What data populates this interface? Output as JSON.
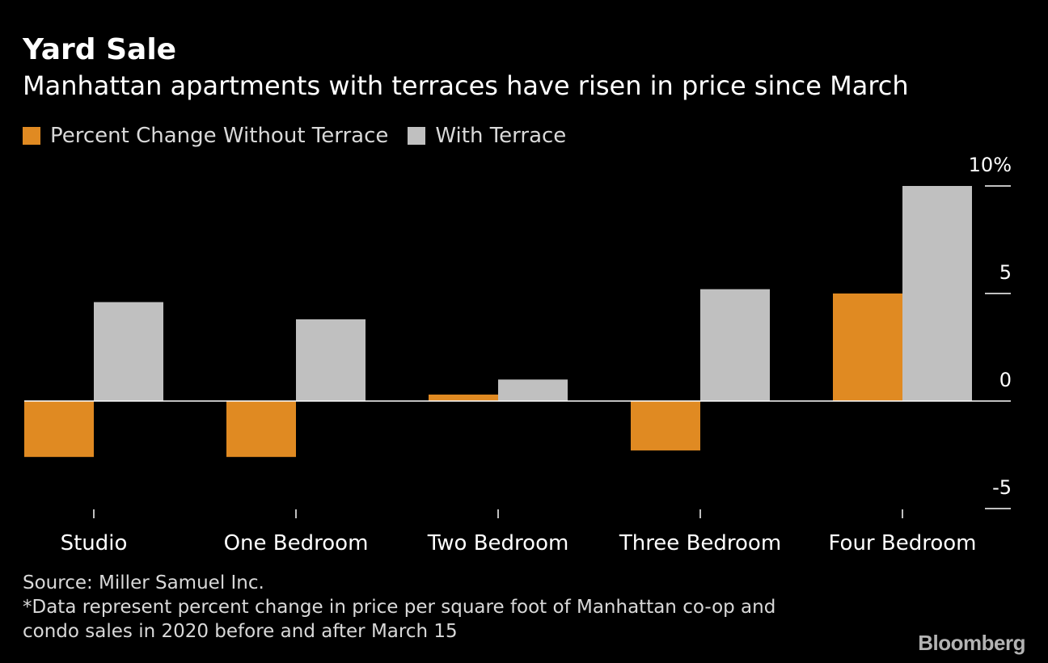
{
  "colors": {
    "background": "#000000",
    "without_terrace": "#e08a22",
    "with_terrace": "#c0c0c0",
    "axis": "#ffffff",
    "text_muted": "#d9d9d9"
  },
  "chart_data": {
    "type": "bar",
    "title": "Yard Sale",
    "subtitle": "Manhattan apartments with terraces have risen in price since March",
    "categories": [
      "Studio",
      "One Bedroom",
      "Two Bedroom",
      "Three Bedroom",
      "Four Bedroom"
    ],
    "series": [
      {
        "name": "Percent Change Without Terrace",
        "color": "#e08a22",
        "values": [
          -2.6,
          -2.6,
          0.3,
          -2.3,
          5.0
        ]
      },
      {
        "name": "With Terrace",
        "color": "#c0c0c0",
        "values": [
          4.6,
          3.8,
          1.0,
          5.2,
          10.0
        ]
      }
    ],
    "yticks": [
      {
        "value": 10,
        "label": "10%"
      },
      {
        "value": 5,
        "label": "5"
      },
      {
        "value": 0,
        "label": "0"
      },
      {
        "value": -5,
        "label": "-5"
      }
    ],
    "ylim": [
      -5,
      10
    ],
    "axis_position": "right",
    "legend_position": "top-left",
    "grid": false
  },
  "footer": {
    "source": "Source: Miller Samuel Inc.",
    "note_line1": "*Data represent percent change in price per square foot of Manhattan co-op and",
    "note_line2": "condo sales in 2020 before and after March 15"
  },
  "brand": "Bloomberg"
}
